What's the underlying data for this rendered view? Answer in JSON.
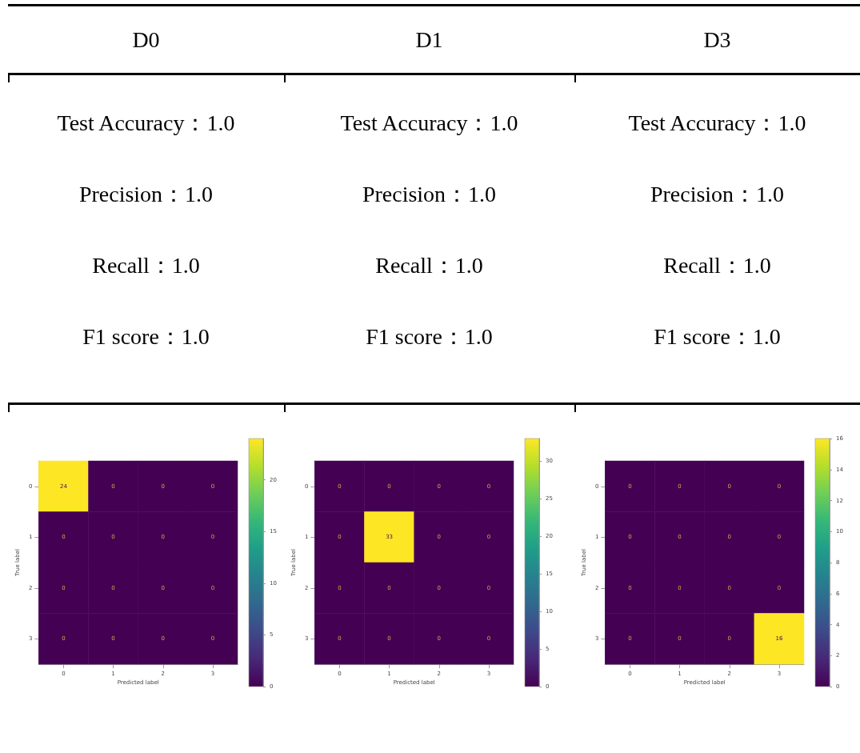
{
  "chart_data": [
    {
      "type": "other",
      "title": "D0",
      "annotations": [
        "Test Accuracy：1.0",
        "Precision：1.0",
        "Recall：1.0",
        "F1 score：1.0"
      ]
    },
    {
      "type": "other",
      "title": "D1",
      "annotations": [
        "Test Accuracy：1.0",
        "Precision：1.0",
        "Recall：1.0",
        "F1 score：1.0"
      ]
    },
    {
      "type": "other",
      "title": "D3",
      "annotations": [
        "Test Accuracy：1.0",
        "Precision：1.0",
        "Recall：1.0",
        "F1 score：1.0"
      ]
    },
    {
      "type": "heatmap",
      "xlabel": "Predicted label",
      "ylabel": "True label",
      "categories": [
        "0",
        "1",
        "2",
        "3"
      ],
      "y_categories": [
        "0",
        "1",
        "2",
        "3"
      ],
      "cells": [
        [
          24,
          0,
          0,
          0
        ],
        [
          0,
          0,
          0,
          0
        ],
        [
          0,
          0,
          0,
          0
        ],
        [
          0,
          0,
          0,
          0
        ]
      ],
      "clim": [
        0,
        24
      ],
      "cticks": [
        0,
        5,
        10,
        15,
        20
      ],
      "data_labels": true
    },
    {
      "type": "heatmap",
      "xlabel": "Predicted label",
      "ylabel": "True label",
      "categories": [
        "0",
        "1",
        "2",
        "3"
      ],
      "y_categories": [
        "0",
        "1",
        "2",
        "3"
      ],
      "cells": [
        [
          0,
          0,
          0,
          0
        ],
        [
          0,
          33,
          0,
          0
        ],
        [
          0,
          0,
          0,
          0
        ],
        [
          0,
          0,
          0,
          0
        ]
      ],
      "clim": [
        0,
        33
      ],
      "cticks": [
        0,
        5,
        10,
        15,
        20,
        25,
        30
      ],
      "data_labels": true
    },
    {
      "type": "heatmap",
      "xlabel": "Predicted label",
      "ylabel": "True label",
      "categories": [
        "0",
        "1",
        "2",
        "3"
      ],
      "y_categories": [
        "0",
        "1",
        "2",
        "3"
      ],
      "cells": [
        [
          0,
          0,
          0,
          0
        ],
        [
          0,
          0,
          0,
          0
        ],
        [
          0,
          0,
          0,
          0
        ],
        [
          0,
          0,
          0,
          16
        ]
      ],
      "clim": [
        0,
        16
      ],
      "cticks": [
        0,
        2,
        4,
        6,
        8,
        10,
        12,
        14,
        16
      ],
      "data_labels": true
    }
  ]
}
